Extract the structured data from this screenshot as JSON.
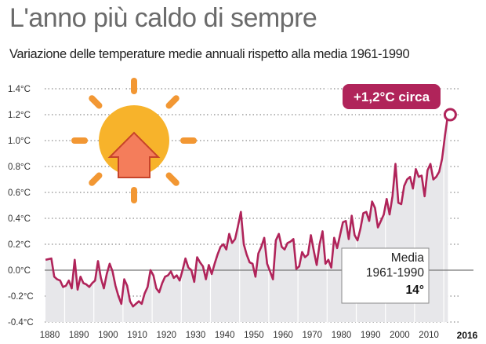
{
  "colors": {
    "line": "#b0245a",
    "fill": "#e7e7ea",
    "grid": "#8a8a8a",
    "sun": "#f7b32b",
    "sun_rays": "#f29733",
    "arrow": "#f47d5b",
    "arrow_stroke": "#c7442a"
  },
  "chart_data": {
    "type": "area",
    "title": "L'anno più caldo di sempre",
    "subtitle": "Variazione delle temperature medie annuali rispetto alla media 1961-1990",
    "ylabel": "°C",
    "ylim": [
      -0.4,
      1.4
    ],
    "xlim": [
      1878,
      2016
    ],
    "grid": true,
    "y_ticks": [
      {
        "value": 1.4,
        "label": "1.4°C"
      },
      {
        "value": 1.2,
        "label": "1.2°C"
      },
      {
        "value": 1.0,
        "label": "1.0°C"
      },
      {
        "value": 0.8,
        "label": "0.8°C"
      },
      {
        "value": 0.6,
        "label": "0.6°C"
      },
      {
        "value": 0.4,
        "label": "0.4°C"
      },
      {
        "value": 0.2,
        "label": "0.2°C"
      },
      {
        "value": 0.0,
        "label": "0.0°C"
      },
      {
        "value": -0.2,
        "label": "-0.2°C"
      },
      {
        "value": -0.4,
        "label": "-0.4°C"
      }
    ],
    "x_ticks": [
      "1880",
      "1890",
      "1900",
      "1910",
      "1920",
      "1930",
      "1940",
      "1950",
      "1960",
      "1970",
      "1980",
      "1990",
      "2000",
      "2010"
    ],
    "x_last_label": "2016",
    "x": [
      1878,
      1880,
      1881,
      1882,
      1883,
      1884,
      1885,
      1886,
      1887,
      1888,
      1889,
      1890,
      1891,
      1892,
      1893,
      1894,
      1895,
      1896,
      1897,
      1898,
      1899,
      1900,
      1901,
      1902,
      1903,
      1904,
      1905,
      1906,
      1907,
      1908,
      1909,
      1910,
      1911,
      1912,
      1913,
      1914,
      1915,
      1916,
      1917,
      1918,
      1919,
      1920,
      1921,
      1922,
      1923,
      1924,
      1925,
      1926,
      1927,
      1928,
      1929,
      1930,
      1931,
      1932,
      1933,
      1934,
      1935,
      1936,
      1937,
      1938,
      1939,
      1940,
      1941,
      1942,
      1943,
      1944,
      1945,
      1946,
      1947,
      1948,
      1949,
      1950,
      1951,
      1952,
      1953,
      1954,
      1955,
      1956,
      1957,
      1958,
      1959,
      1960,
      1961,
      1962,
      1963,
      1964,
      1965,
      1966,
      1967,
      1968,
      1969,
      1970,
      1971,
      1972,
      1973,
      1974,
      1975,
      1976,
      1977,
      1978,
      1979,
      1980,
      1981,
      1982,
      1983,
      1984,
      1985,
      1986,
      1987,
      1988,
      1989,
      1990,
      1991,
      1992,
      1993,
      1994,
      1995,
      1996,
      1997,
      1998,
      1999,
      2000,
      2001,
      2002,
      2003,
      2004,
      2005,
      2006,
      2007,
      2008,
      2009,
      2010,
      2011,
      2012,
      2013,
      2014,
      2015,
      2016
    ],
    "values": [
      0.08,
      0.09,
      -0.05,
      -0.07,
      -0.08,
      -0.13,
      -0.12,
      -0.08,
      -0.14,
      0.08,
      -0.15,
      -0.05,
      -0.1,
      -0.11,
      -0.13,
      -0.1,
      -0.08,
      0.07,
      -0.06,
      -0.14,
      -0.03,
      0.05,
      -0.01,
      -0.12,
      -0.2,
      -0.26,
      -0.07,
      -0.12,
      -0.24,
      -0.28,
      -0.26,
      -0.24,
      -0.26,
      -0.18,
      -0.13,
      0.0,
      -0.04,
      -0.14,
      -0.17,
      -0.1,
      -0.05,
      -0.04,
      -0.01,
      -0.06,
      -0.04,
      -0.08,
      0.0,
      0.09,
      0.02,
      0.0,
      -0.09,
      0.1,
      0.06,
      0.03,
      -0.07,
      0.04,
      -0.03,
      0.05,
      0.12,
      0.18,
      0.2,
      0.16,
      0.28,
      0.21,
      0.24,
      0.34,
      0.45,
      0.2,
      0.12,
      0.06,
      0.05,
      -0.05,
      0.13,
      0.18,
      0.25,
      0.05,
      -0.01,
      -0.07,
      0.23,
      0.28,
      0.18,
      0.16,
      0.21,
      0.22,
      0.24,
      0.01,
      0.03,
      0.14,
      0.1,
      0.12,
      0.27,
      0.15,
      0.04,
      0.2,
      0.3,
      0.05,
      0.08,
      0.02,
      0.25,
      0.17,
      0.27,
      0.37,
      0.38,
      0.24,
      0.42,
      0.27,
      0.23,
      0.32,
      0.44,
      0.45,
      0.38,
      0.53,
      0.48,
      0.33,
      0.38,
      0.43,
      0.55,
      0.43,
      0.57,
      0.82,
      0.52,
      0.51,
      0.65,
      0.7,
      0.72,
      0.63,
      0.78,
      0.72,
      0.73,
      0.57,
      0.77,
      0.82,
      0.7,
      0.72,
      0.76,
      0.86,
      1.04,
      1.2
    ],
    "callout": {
      "label": "+1,2°C circa",
      "year": 2016,
      "value": 1.2
    },
    "legend": {
      "line1": "Media",
      "line2": "1961-1990",
      "line3": "14°"
    }
  }
}
